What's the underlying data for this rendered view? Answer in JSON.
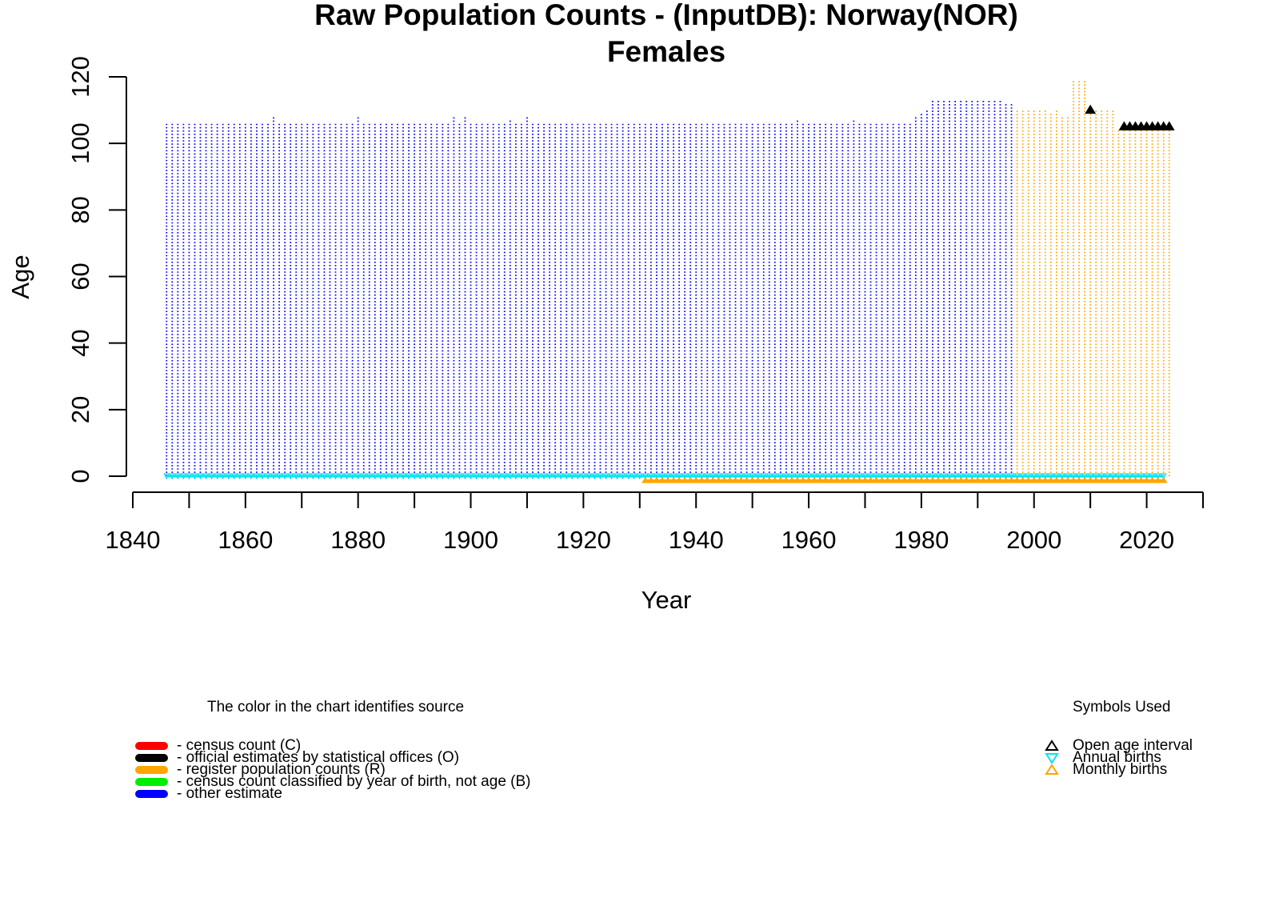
{
  "chart_data": {
    "type": "scatter",
    "title": "Raw Population Counts - (InputDB): Norway(NOR)",
    "subtitle": "Females",
    "xlabel": "Year",
    "ylabel": "Age",
    "xlim": [
      1840,
      2030
    ],
    "ylim": [
      0,
      120
    ],
    "x_ticks": [
      1840,
      1850,
      1860,
      1870,
      1880,
      1890,
      1900,
      1910,
      1920,
      1930,
      1940,
      1950,
      1960,
      1970,
      1980,
      1990,
      2000,
      2010,
      2020,
      2030
    ],
    "x_tick_labels": [
      "1840",
      "1860",
      "1880",
      "1900",
      "1920",
      "1940",
      "1960",
      "1980",
      "2000",
      "2020"
    ],
    "y_ticks": [
      0,
      20,
      40,
      60,
      80,
      100,
      120
    ],
    "y_tick_labels": [
      "0",
      "20",
      "40",
      "60",
      "80",
      "100",
      "120"
    ],
    "series": [
      {
        "source": "other estimate",
        "color": "#0000ff",
        "years": [
          1846,
          1996
        ],
        "default_max_age": 106,
        "max_age_exceptions": {
          "1865": 108,
          "1880": 108,
          "1897": 108,
          "1899": 108,
          "1907": 107,
          "1910": 108,
          "1958": 107,
          "1968": 107,
          "1979": 108,
          "1980": 109,
          "1981": 110,
          "1982": 113,
          "1983": 113,
          "1984": 113,
          "1985": 113,
          "1986": 113,
          "1987": 113,
          "1988": 113,
          "1989": 113,
          "1990": 113,
          "1991": 113,
          "1992": 113,
          "1993": 113,
          "1994": 113,
          "1995": 112,
          "1996": 112
        }
      },
      {
        "source": "register population counts",
        "color": "#ffa500",
        "years": [
          1997,
          2024
        ],
        "default_max_age": 110,
        "max_age_exceptions": {
          "2003": 109,
          "2004": 110,
          "2005": 108,
          "2006": 108,
          "2007": 119,
          "2008": 119,
          "2009": 119,
          "2010": 109,
          "2015": 104,
          "2016": 104,
          "2017": 104,
          "2018": 104,
          "2019": 104,
          "2020": 104,
          "2021": 104,
          "2022": 104,
          "2023": 104,
          "2024": 104
        }
      }
    ],
    "open_age_interval_points": [
      {
        "year": 2010,
        "age": 110
      },
      {
        "year": 2016,
        "age": 105
      },
      {
        "year": 2017,
        "age": 105
      },
      {
        "year": 2018,
        "age": 105
      },
      {
        "year": 2019,
        "age": 105
      },
      {
        "year": 2020,
        "age": 105
      },
      {
        "year": 2021,
        "age": 105
      },
      {
        "year": 2022,
        "age": 105
      },
      {
        "year": 2023,
        "age": 105
      },
      {
        "year": 2024,
        "age": 105
      }
    ],
    "annual_births": {
      "color": "#00e5ee",
      "years": [
        1846,
        2023
      ]
    },
    "monthly_births": {
      "color": "#ffa500",
      "years": [
        1931,
        2023
      ]
    },
    "grid": false
  },
  "legend_source": {
    "title": "The color in the chart identifies source",
    "items": [
      {
        "label": "- census count (C)",
        "color": "#ff0000"
      },
      {
        "label": "- official estimates by statistical offices (O)",
        "color": "#000000"
      },
      {
        "label": "- register population counts (R)",
        "color": "#ffa500"
      },
      {
        "label": "- census count classified by year of birth, not age (B)",
        "color": "#00ee00"
      },
      {
        "label": "- other estimate",
        "color": "#0000ff"
      }
    ]
  },
  "legend_symbols": {
    "title": "Symbols Used",
    "items": [
      {
        "label": "Open age interval",
        "icon": "triangle-up-icon",
        "color": "#000000"
      },
      {
        "label": "Annual births",
        "icon": "triangle-down-icon",
        "color": "#00e5ee"
      },
      {
        "label": "Monthly births",
        "icon": "triangle-up-icon",
        "color": "#ffa500"
      }
    ]
  }
}
